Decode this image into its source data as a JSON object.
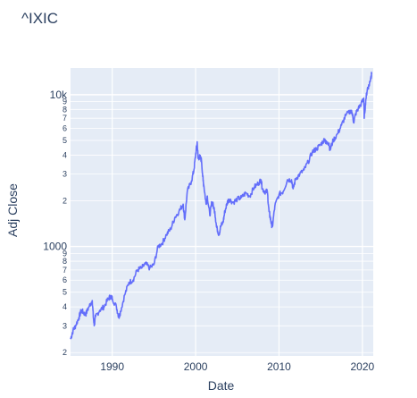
{
  "chart_data": {
    "type": "line",
    "title": "^IXIC",
    "xlabel": "Date",
    "ylabel": "Adj Close",
    "y_scale": "log",
    "xlim": [
      1985.0,
      2021.3
    ],
    "ylim": [
      190,
      15000
    ],
    "x_ticks": [
      {
        "value": 1990,
        "label": "1990"
      },
      {
        "value": 2000,
        "label": "2000"
      },
      {
        "value": 2010,
        "label": "2010"
      },
      {
        "value": 2020,
        "label": "2020"
      }
    ],
    "y_major_ticks": [
      {
        "value": 1000,
        "label": "1000"
      },
      {
        "value": 10000,
        "label": "10k"
      }
    ],
    "y_minor_ticks": [
      {
        "value": 200,
        "label": "2"
      },
      {
        "value": 300,
        "label": "3"
      },
      {
        "value": 400,
        "label": "4"
      },
      {
        "value": 500,
        "label": "5"
      },
      {
        "value": 600,
        "label": "6"
      },
      {
        "value": 700,
        "label": "7"
      },
      {
        "value": 800,
        "label": "8"
      },
      {
        "value": 900,
        "label": "9"
      },
      {
        "value": 2000,
        "label": "2"
      },
      {
        "value": 3000,
        "label": "3"
      },
      {
        "value": 4000,
        "label": "4"
      },
      {
        "value": 5000,
        "label": "5"
      },
      {
        "value": 6000,
        "label": "6"
      },
      {
        "value": 7000,
        "label": "7"
      },
      {
        "value": 8000,
        "label": "8"
      },
      {
        "value": 9000,
        "label": "9"
      }
    ],
    "grid": true,
    "colors": {
      "line": "#636efa",
      "plot_bg": "#e5ecf6",
      "grid": "#ffffff",
      "text": "#2a3f5f"
    },
    "series": [
      {
        "x": [
          1985.0,
          1985.3,
          1985.6,
          1986.0,
          1986.3,
          1986.5,
          1986.8,
          1987.2,
          1987.6,
          1987.78,
          1987.85,
          1988.0,
          1988.5,
          1989.0,
          1989.5,
          1989.8,
          1990.0,
          1990.5,
          1990.8,
          1991.0,
          1991.5,
          1992.0,
          1992.5,
          1993.0,
          1993.5,
          1994.0,
          1994.5,
          1995.0,
          1995.5,
          1996.0,
          1996.5,
          1997.0,
          1997.5,
          1998.0,
          1998.5,
          1998.7,
          1999.0,
          1999.5,
          1999.8,
          2000.0,
          2000.18,
          2000.3,
          2000.5,
          2000.7,
          2000.9,
          2001.0,
          2001.25,
          2001.4,
          2001.7,
          2001.9,
          2002.0,
          2002.3,
          2002.5,
          2002.8,
          2003.0,
          2003.3,
          2003.5,
          2003.8,
          2004.0,
          2004.5,
          2005.0,
          2005.5,
          2006.0,
          2006.5,
          2007.0,
          2007.5,
          2007.85,
          2008.0,
          2008.3,
          2008.6,
          2008.8,
          2008.95,
          2009.1,
          2009.2,
          2009.5,
          2010.0,
          2010.5,
          2011.0,
          2011.5,
          2011.7,
          2012.0,
          2012.5,
          2013.0,
          2013.5,
          2014.0,
          2014.5,
          2015.0,
          2015.5,
          2015.7,
          2016.0,
          2016.1,
          2016.5,
          2017.0,
          2017.5,
          2018.0,
          2018.7,
          2018.95,
          2019.2,
          2019.5,
          2020.0,
          2020.15,
          2020.22,
          2020.4,
          2020.6,
          2020.8,
          2021.0,
          2021.1
        ],
        "y": [
          245,
          280,
          300,
          340,
          380,
          370,
          355,
          400,
          440,
          320,
          305,
          345,
          380,
          400,
          450,
          470,
          455,
          400,
          340,
          375,
          480,
          580,
          600,
          700,
          720,
          770,
          720,
          760,
          1000,
          1050,
          1200,
          1300,
          1550,
          1700,
          1900,
          1500,
          2300,
          2700,
          3200,
          4000,
          4900,
          3800,
          3900,
          3700,
          2700,
          2500,
          1900,
          2150,
          1600,
          1900,
          1950,
          1700,
          1350,
          1200,
          1350,
          1450,
          1700,
          1950,
          2050,
          1950,
          2050,
          2100,
          2250,
          2150,
          2450,
          2600,
          2750,
          2400,
          2300,
          2300,
          1700,
          1550,
          1400,
          1350,
          1850,
          2200,
          2300,
          2750,
          2750,
          2400,
          2800,
          3000,
          3200,
          3600,
          4200,
          4400,
          4700,
          5100,
          4750,
          4800,
          4300,
          5000,
          5500,
          6300,
          7300,
          7900,
          6600,
          7500,
          8100,
          9000,
          9500,
          7000,
          9200,
          11000,
          11500,
          13000,
          13600
        ]
      }
    ]
  }
}
